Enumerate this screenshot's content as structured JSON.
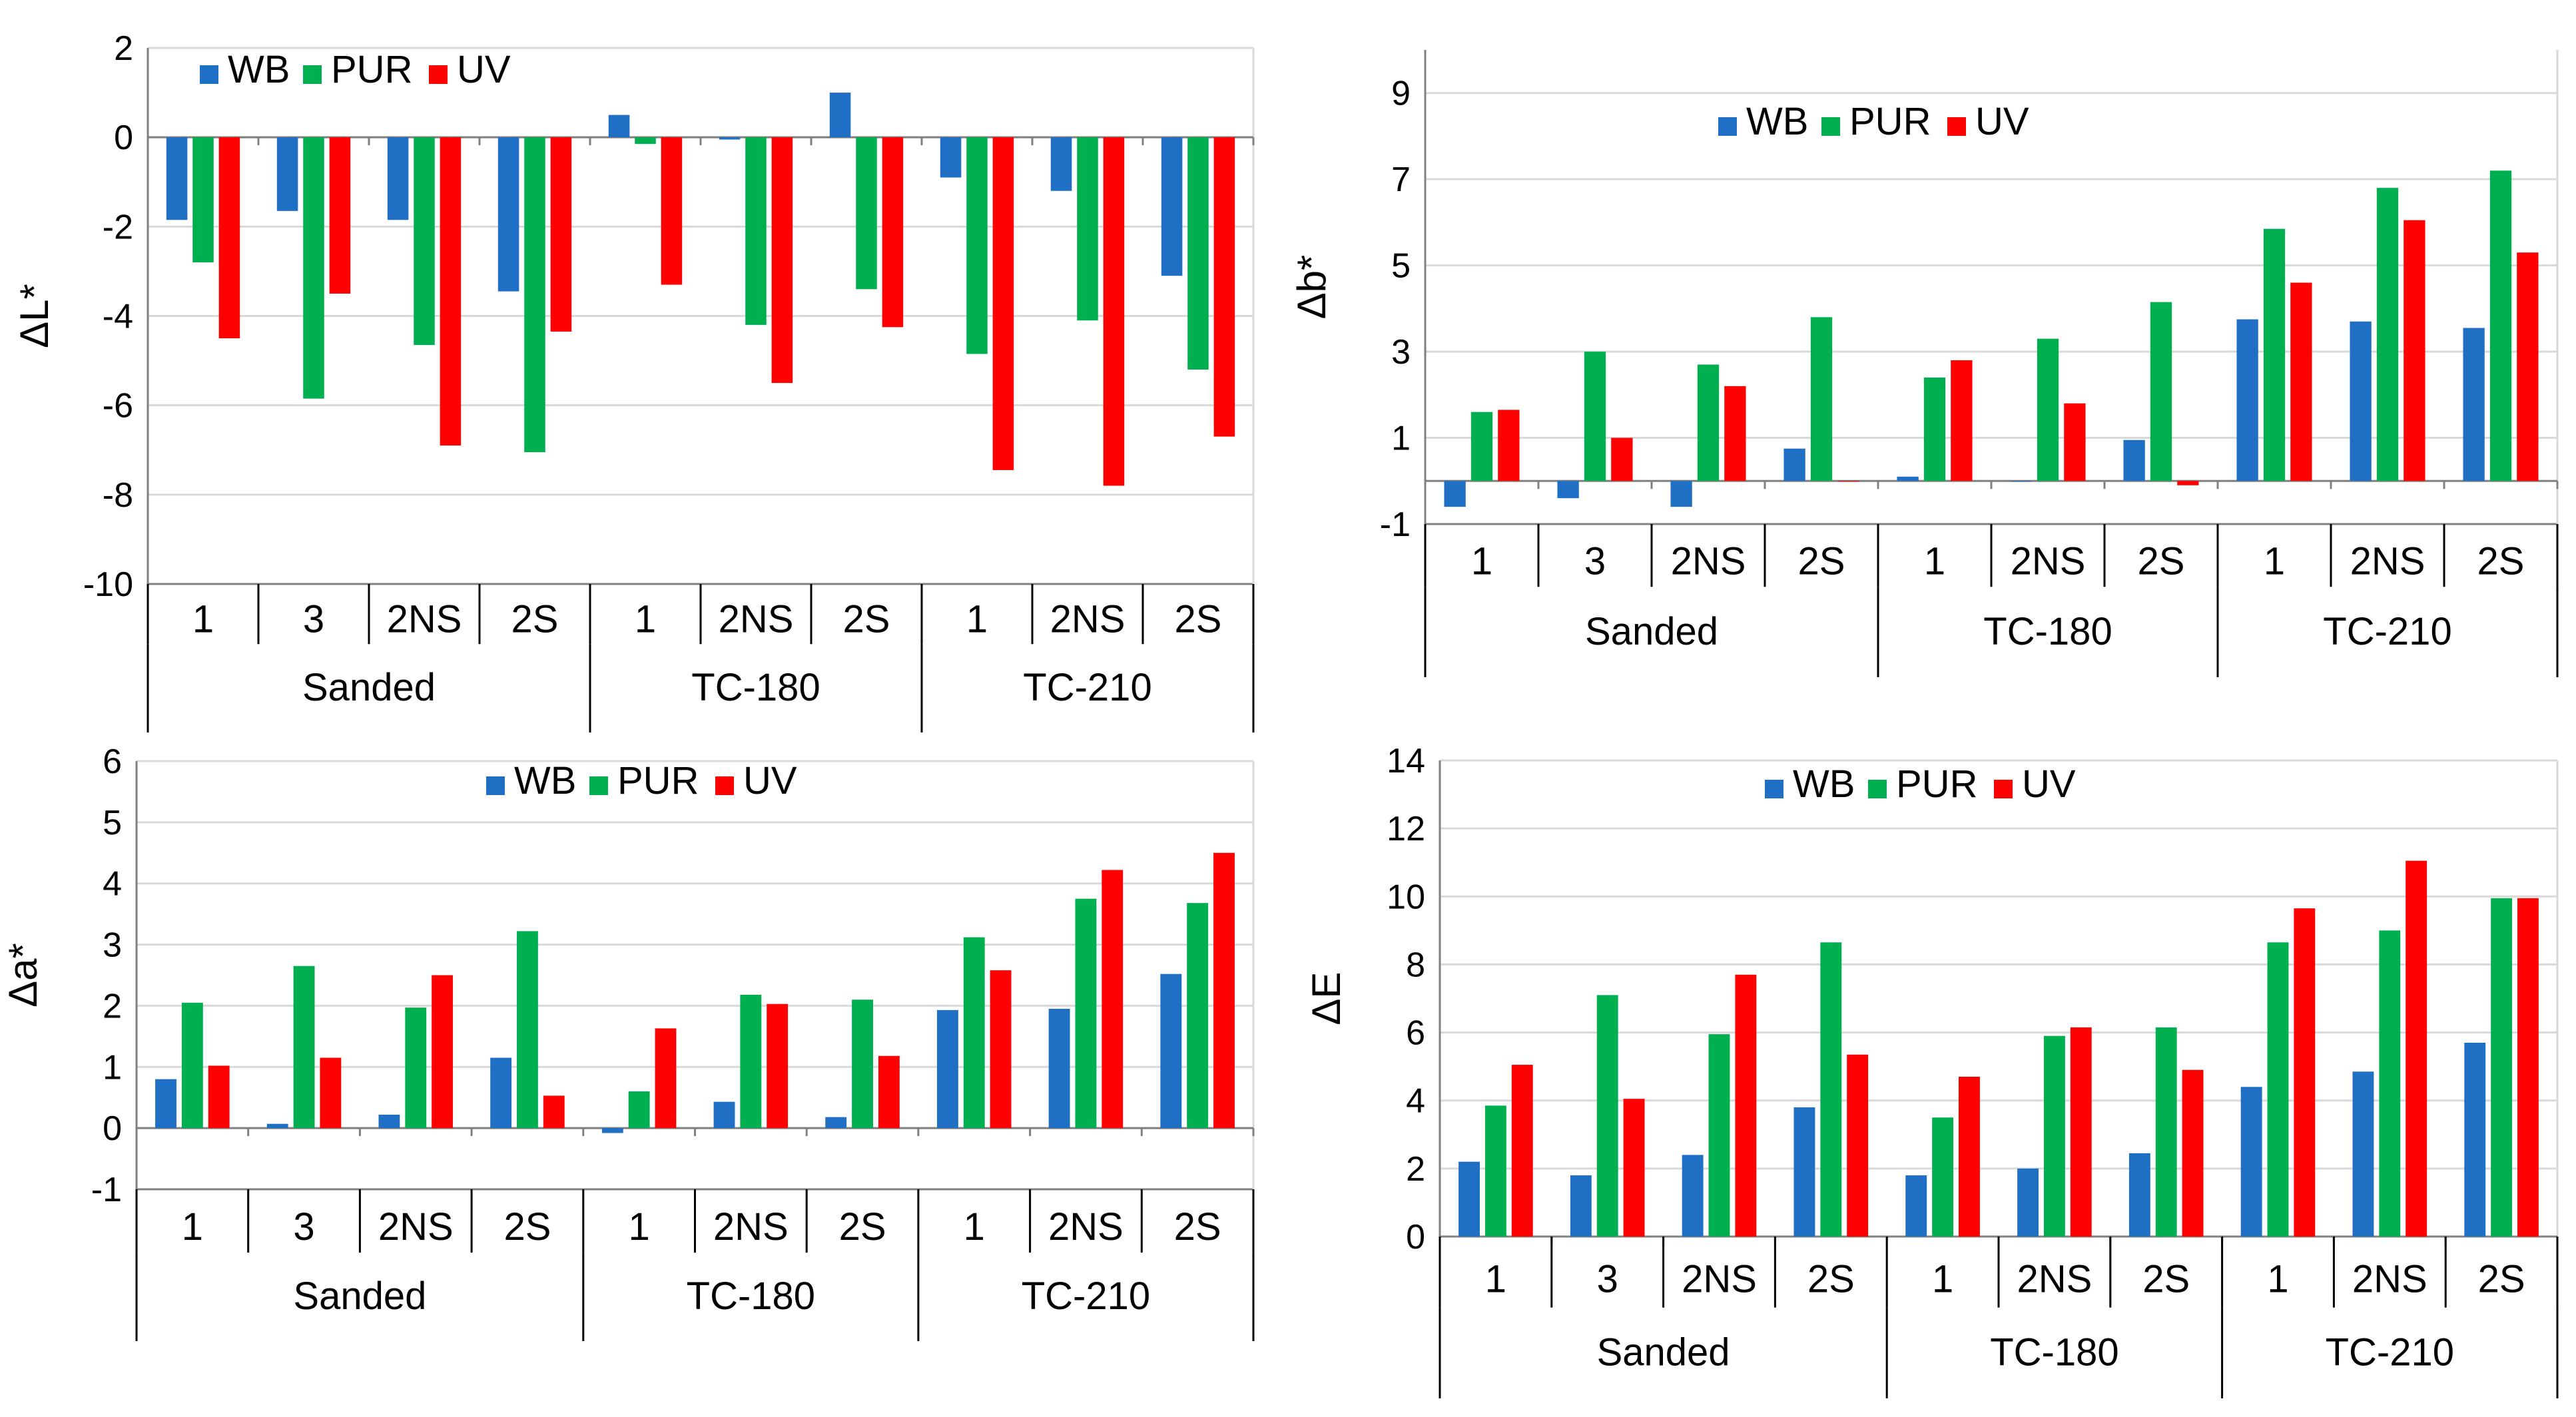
{
  "colors": {
    "WB": "#1f6fc5",
    "PUR": "#00b050",
    "UV": "#ff0000"
  },
  "chart_data": [
    {
      "type": "bar",
      "ylabel": "ΔL*",
      "ylim": [
        -10,
        2
      ],
      "yticks": [
        2,
        0,
        -2,
        -4,
        -6,
        -8,
        -10
      ],
      "categories": [
        "1",
        "3",
        "2NS",
        "2S",
        "1",
        "2NS",
        "2S",
        "1",
        "2NS",
        "2S"
      ],
      "groups": [
        {
          "label": "Sanded",
          "count": 4
        },
        {
          "label": "TC-180",
          "count": 3
        },
        {
          "label": "TC-210",
          "count": 3
        }
      ],
      "series": [
        {
          "name": "WB",
          "values": [
            -1.85,
            -1.65,
            -1.85,
            -3.45,
            0.5,
            -0.05,
            1.0,
            -0.9,
            -1.2,
            -3.1
          ]
        },
        {
          "name": "PUR",
          "values": [
            -2.8,
            -5.85,
            -4.65,
            -7.05,
            -0.15,
            -4.2,
            -3.4,
            -4.85,
            -4.1,
            -5.2
          ]
        },
        {
          "name": "UV",
          "values": [
            -4.5,
            -3.5,
            -6.9,
            -4.35,
            -3.3,
            -5.5,
            -4.25,
            -7.45,
            -7.8,
            -6.7
          ]
        }
      ]
    },
    {
      "type": "bar",
      "ylabel": "Δb*",
      "ylim": [
        -1,
        10
      ],
      "yticks": [
        9,
        7,
        5,
        3,
        1,
        -1
      ],
      "categories": [
        "1",
        "3",
        "2NS",
        "2S",
        "1",
        "2NS",
        "2S",
        "1",
        "2NS",
        "2S"
      ],
      "groups": [
        {
          "label": "Sanded",
          "count": 4
        },
        {
          "label": "TC-180",
          "count": 3
        },
        {
          "label": "TC-210",
          "count": 3
        }
      ],
      "series": [
        {
          "name": "WB",
          "values": [
            -0.6,
            -0.4,
            -0.6,
            0.75,
            0.1,
            0.0,
            0.95,
            3.75,
            3.7,
            3.55
          ]
        },
        {
          "name": "PUR",
          "values": [
            1.6,
            3.0,
            2.7,
            3.8,
            2.4,
            3.3,
            4.15,
            5.85,
            6.8,
            7.2
          ]
        },
        {
          "name": "UV",
          "values": [
            1.65,
            1.0,
            2.2,
            0.0,
            2.8,
            1.8,
            -0.1,
            4.6,
            6.05,
            5.3
          ]
        }
      ]
    },
    {
      "type": "bar",
      "ylabel": "Δa*",
      "ylim": [
        -1,
        6
      ],
      "yticks": [
        6,
        5,
        4,
        3,
        2,
        1,
        0,
        -1
      ],
      "categories": [
        "1",
        "3",
        "2NS",
        "2S",
        "1",
        "2NS",
        "2S",
        "1",
        "2NS",
        "2S"
      ],
      "groups": [
        {
          "label": "Sanded",
          "count": 4
        },
        {
          "label": "TC-180",
          "count": 3
        },
        {
          "label": "TC-210",
          "count": 3
        }
      ],
      "series": [
        {
          "name": "WB",
          "values": [
            0.8,
            0.07,
            0.22,
            1.15,
            -0.08,
            0.43,
            0.18,
            1.93,
            1.95,
            2.52
          ]
        },
        {
          "name": "PUR",
          "values": [
            2.05,
            2.65,
            1.97,
            3.22,
            0.6,
            2.18,
            2.1,
            3.12,
            3.75,
            3.68
          ]
        },
        {
          "name": "UV",
          "values": [
            1.02,
            1.15,
            2.5,
            0.53,
            1.63,
            2.03,
            1.18,
            2.58,
            4.22,
            4.5
          ]
        }
      ]
    },
    {
      "type": "bar",
      "ylabel": "ΔE",
      "ylim": [
        0,
        14
      ],
      "yticks": [
        14,
        12,
        10,
        8,
        6,
        4,
        2,
        0
      ],
      "categories": [
        "1",
        "3",
        "2NS",
        "2S",
        "1",
        "2NS",
        "2S",
        "1",
        "2NS",
        "2S"
      ],
      "groups": [
        {
          "label": "Sanded",
          "count": 4
        },
        {
          "label": "TC-180",
          "count": 3
        },
        {
          "label": "TC-210",
          "count": 3
        }
      ],
      "series": [
        {
          "name": "WB",
          "values": [
            2.2,
            1.8,
            2.4,
            3.8,
            1.8,
            2.0,
            2.45,
            4.4,
            4.85,
            5.7
          ]
        },
        {
          "name": "PUR",
          "values": [
            3.85,
            7.1,
            5.95,
            8.65,
            3.5,
            5.9,
            6.15,
            8.65,
            9.0,
            9.95
          ]
        },
        {
          "name": "UV",
          "values": [
            5.05,
            4.05,
            7.7,
            5.35,
            4.7,
            6.15,
            4.9,
            9.65,
            11.05,
            9.95
          ]
        }
      ]
    }
  ]
}
